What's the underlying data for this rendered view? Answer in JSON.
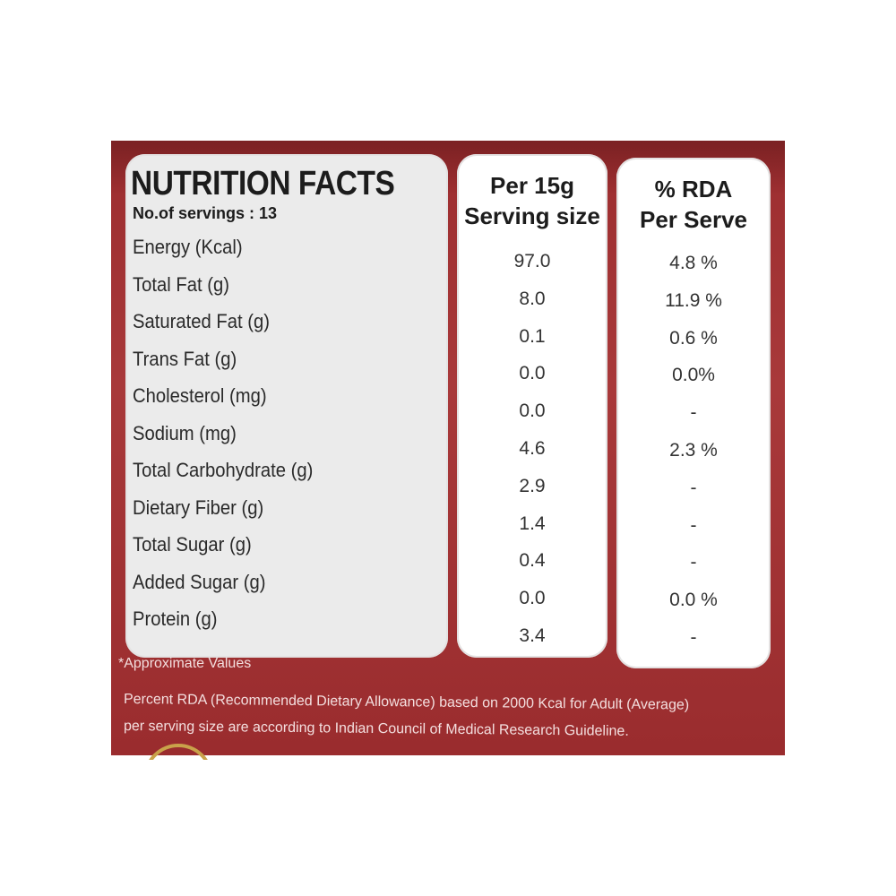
{
  "label": {
    "title": "NUTRITION FACTS",
    "servings": "No.of servings : 13",
    "col_serving": [
      "Per 15g",
      "Serving size"
    ],
    "col_rda": [
      "% RDA",
      "Per Serve"
    ],
    "rows": [
      {
        "name": "Energy (Kcal)",
        "value": "97.0",
        "rda": "4.8 %"
      },
      {
        "name": "Total Fat (g)",
        "value": "8.0",
        "rda": "11.9 %"
      },
      {
        "name": "Saturated Fat (g)",
        "value": "0.1",
        "rda": "0.6 %"
      },
      {
        "name": "Trans Fat (g)",
        "value": "0.0",
        "rda": "0.0%"
      },
      {
        "name": "Cholesterol (mg)",
        "value": "0.0",
        "rda": "-"
      },
      {
        "name": "Sodium (mg)",
        "value": "4.6",
        "rda": "2.3 %"
      },
      {
        "name": "Total Carbohydrate (g)",
        "value": "2.9",
        "rda": "-"
      },
      {
        "name": "Dietary Fiber (g)",
        "value": "1.4",
        "rda": "-"
      },
      {
        "name": "Total Sugar (g)",
        "value": "0.4",
        "rda": "-"
      },
      {
        "name": "Added Sugar (g)",
        "value": "0.0",
        "rda": "0.0 %"
      },
      {
        "name": "Protein (g)",
        "value": "3.4",
        "rda": "-"
      }
    ],
    "footnotes": [
      "*Approximate Values",
      "Percent RDA (Recommended Dietary Allowance) based on 2000 Kcal for Adult (Average)",
      "per serving size are according to Indian Council of Medical Research Guideline."
    ]
  },
  "colors": {
    "background": "#9c2d2f",
    "panel": "#ffffff",
    "text": "#1c1c1c",
    "footnote": "#f3dede",
    "accent_gold": "#c9a24a"
  }
}
